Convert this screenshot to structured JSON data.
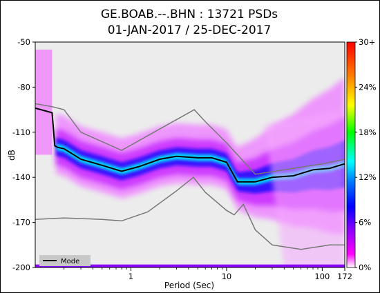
{
  "chart_data": {
    "type": "heatmap",
    "title_line1": "GE.BOAB.--.BHN : 13721 PSDs",
    "title_line2": "01-JAN-2017 / 25-DEC-2017",
    "xlabel": "Period (Sec)",
    "ylabel": "dB",
    "x_scale": "log",
    "xlim": [
      0.1,
      172
    ],
    "ylim": [
      -200,
      -50
    ],
    "x_ticks": [
      1,
      10,
      100,
      172
    ],
    "x_tick_labels": [
      "1",
      "10",
      "100",
      "172"
    ],
    "y_ticks": [
      -50,
      -80,
      -110,
      -140,
      -170,
      -200
    ],
    "y_tick_labels": [
      "-50",
      "-80",
      "-110",
      "-140",
      "-170",
      "-200"
    ],
    "legend": {
      "entries": [
        "Mode"
      ],
      "placement": "bottom-left"
    },
    "colorbar": {
      "ticks": [
        "30+",
        "24%",
        "18%",
        "12%",
        "6%",
        "0%"
      ],
      "colors": [
        "#ffffff",
        "#ff00ff",
        "#8a00ff",
        "#0000ff",
        "#0077ff",
        "#00ffff",
        "#00ff00",
        "#ffff00",
        "#ff7f00",
        "#ff0000"
      ]
    },
    "mode_curve": {
      "period": [
        0.1,
        0.15,
        0.16,
        0.17,
        0.2,
        0.3,
        0.5,
        0.8,
        1.2,
        2,
        3,
        5,
        7,
        10,
        13,
        20,
        30,
        50,
        80,
        120,
        172
      ],
      "db": [
        -94,
        -97,
        -119,
        -120,
        -121,
        -128,
        -132,
        -136,
        -133,
        -128,
        -126,
        -127,
        -127,
        -130,
        -143,
        -143,
        -140,
        -139,
        -135,
        -134,
        -131
      ]
    },
    "nhnm": {
      "period": [
        0.1,
        0.15,
        0.2,
        0.3,
        0.8,
        4.6,
        6,
        10,
        20,
        100,
        172
      ],
      "db": [
        -91,
        -93,
        -95,
        -110,
        -122,
        -95,
        -103,
        -117,
        -138,
        -131,
        -128
      ]
    },
    "nlnm": {
      "period": [
        0.1,
        0.2,
        0.5,
        0.8,
        1.5,
        3,
        4.5,
        6,
        10,
        12,
        15,
        20,
        30,
        60,
        120,
        172
      ],
      "db": [
        -168,
        -167,
        -168,
        -169,
        -163,
        -149,
        -140,
        -150,
        -162,
        -165,
        -158,
        -175,
        -185,
        -188,
        -185,
        -185
      ]
    },
    "background_color": "#ececec"
  }
}
